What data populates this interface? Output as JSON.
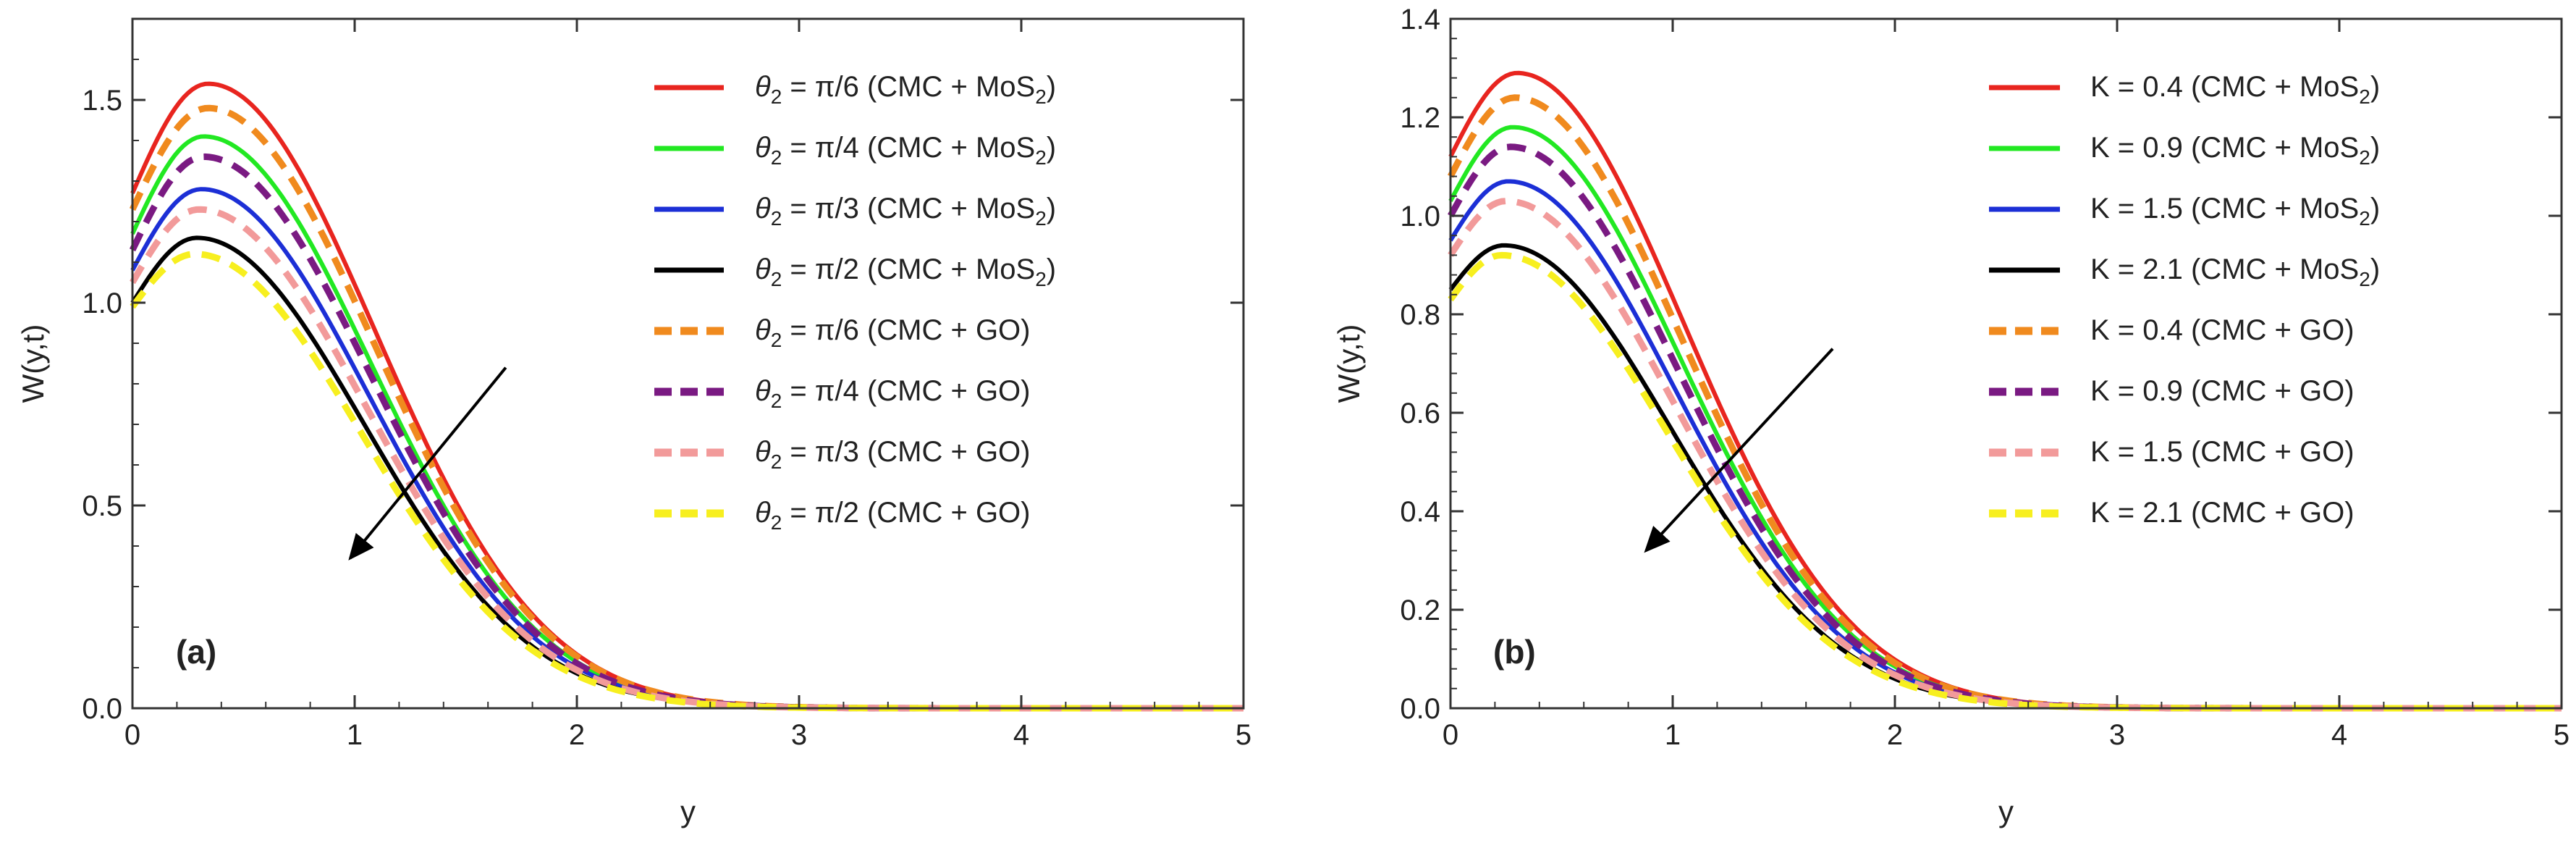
{
  "chart_data": [
    {
      "type": "line",
      "panel_label": "(a)",
      "xlabel": "y",
      "ylabel": "W(y,t)",
      "xlim": [
        0,
        5
      ],
      "ylim": [
        0,
        1.7
      ],
      "xticks": [
        "0",
        "1",
        "2",
        "3",
        "4",
        "5"
      ],
      "xtick_values": [
        0,
        1,
        2,
        3,
        4,
        5
      ],
      "yticks": [
        "0.0",
        "0.5",
        "1.0",
        "1.5"
      ],
      "ytick_values": [
        0,
        0.5,
        1.0,
        1.5
      ],
      "grid": false,
      "legend_position": "top-right",
      "arrow": {
        "from": [
          1.68,
          0.84
        ],
        "to": [
          0.98,
          0.37
        ]
      },
      "series": [
        {
          "label": {
            "sym": "θ",
            "sub": "2",
            "rest": " = π/6  (CMC + MoS",
            "sub2": "2",
            "tail": ")"
          },
          "color": "#e8251f",
          "dashed": false,
          "w0": 1.27,
          "peak_y": 0.34,
          "peak_w": 1.54
        },
        {
          "label": {
            "sym": "θ",
            "sub": "2",
            "rest": " = π/4  (CMC + MoS",
            "sub2": "2",
            "tail": ")"
          },
          "color": "#22e822",
          "dashed": false,
          "w0": 1.17,
          "peak_y": 0.32,
          "peak_w": 1.41
        },
        {
          "label": {
            "sym": "θ",
            "sub": "2",
            "rest": " = π/3  (CMC + MoS",
            "sub2": "2",
            "tail": ")"
          },
          "color": "#1c2fd6",
          "dashed": false,
          "w0": 1.08,
          "peak_y": 0.31,
          "peak_w": 1.28
        },
        {
          "label": {
            "sym": "θ",
            "sub": "2",
            "rest": " = π/2  (CMC + MoS",
            "sub2": "2",
            "tail": ")"
          },
          "color": "#000000",
          "dashed": false,
          "w0": 1.0,
          "peak_y": 0.29,
          "peak_w": 1.16
        },
        {
          "label": {
            "sym": "θ",
            "sub": "2",
            "rest": " = π/6  (CMC + GO)",
            "sub2": "",
            "tail": ""
          },
          "color": "#f08a1e",
          "dashed": true,
          "w0": 1.23,
          "peak_y": 0.34,
          "peak_w": 1.48
        },
        {
          "label": {
            "sym": "θ",
            "sub": "2",
            "rest": " = π/4  (CMC + GO)",
            "sub2": "",
            "tail": ""
          },
          "color": "#7a1a82",
          "dashed": true,
          "w0": 1.13,
          "peak_y": 0.32,
          "peak_w": 1.36
        },
        {
          "label": {
            "sym": "θ",
            "sub": "2",
            "rest": " = π/3  (CMC + GO)",
            "sub2": "",
            "tail": ""
          },
          "color": "#f29a9a",
          "dashed": true,
          "w0": 1.05,
          "peak_y": 0.3,
          "peak_w": 1.23
        },
        {
          "label": {
            "sym": "θ",
            "sub": "2",
            "rest": " = π/2  (CMC + GO)",
            "sub2": "",
            "tail": ""
          },
          "color": "#f7ef1f",
          "dashed": true,
          "w0": 0.99,
          "peak_y": 0.28,
          "peak_w": 1.12
        }
      ]
    },
    {
      "type": "line",
      "panel_label": "(b)",
      "xlabel": "y",
      "ylabel": "W(y,t)",
      "xlim": [
        0,
        5
      ],
      "ylim": [
        0,
        1.4
      ],
      "xticks": [
        "0",
        "1",
        "2",
        "3",
        "4",
        "5"
      ],
      "xtick_values": [
        0,
        1,
        2,
        3,
        4,
        5
      ],
      "yticks": [
        "0.0",
        "0.2",
        "0.4",
        "0.6",
        "0.8",
        "1.0",
        "1.2",
        "1.4"
      ],
      "ytick_values": [
        0,
        0.2,
        0.4,
        0.6,
        0.8,
        1.0,
        1.2,
        1.4
      ],
      "grid": false,
      "legend_position": "top-right",
      "arrow": {
        "from": [
          1.72,
          0.73
        ],
        "to": [
          0.88,
          0.32
        ]
      },
      "series": [
        {
          "label": {
            "sym": "",
            "sub": "",
            "rest": "K = 0.4  (CMC + MoS",
            "sub2": "2",
            "tail": ")"
          },
          "color": "#e8251f",
          "dashed": false,
          "w0": 1.12,
          "peak_y": 0.3,
          "peak_w": 1.29
        },
        {
          "label": {
            "sym": "",
            "sub": "",
            "rest": "K = 0.9  (CMC + MoS",
            "sub2": "2",
            "tail": ")"
          },
          "color": "#22e822",
          "dashed": false,
          "w0": 1.03,
          "peak_y": 0.28,
          "peak_w": 1.18
        },
        {
          "label": {
            "sym": "",
            "sub": "",
            "rest": "K = 1.5  (CMC + MoS",
            "sub2": "2",
            "tail": ")"
          },
          "color": "#1c2fd6",
          "dashed": false,
          "w0": 0.95,
          "peak_y": 0.26,
          "peak_w": 1.07
        },
        {
          "label": {
            "sym": "",
            "sub": "",
            "rest": "K = 2.1  (CMC + MoS",
            "sub2": "2",
            "tail": ")"
          },
          "color": "#000000",
          "dashed": false,
          "w0": 0.85,
          "peak_y": 0.24,
          "peak_w": 0.94
        },
        {
          "label": {
            "sym": "",
            "sub": "",
            "rest": "K = 0.4  (CMC + GO)",
            "sub2": "",
            "tail": ""
          },
          "color": "#f08a1e",
          "dashed": true,
          "w0": 1.08,
          "peak_y": 0.29,
          "peak_w": 1.24
        },
        {
          "label": {
            "sym": "",
            "sub": "",
            "rest": "K = 0.9  (CMC + GO)",
            "sub2": "",
            "tail": ""
          },
          "color": "#7a1a82",
          "dashed": true,
          "w0": 1.0,
          "peak_y": 0.27,
          "peak_w": 1.14
        },
        {
          "label": {
            "sym": "",
            "sub": "",
            "rest": "K = 1.5  (CMC + GO)",
            "sub2": "",
            "tail": ""
          },
          "color": "#f29a9a",
          "dashed": true,
          "w0": 0.92,
          "peak_y": 0.25,
          "peak_w": 1.03
        },
        {
          "label": {
            "sym": "",
            "sub": "",
            "rest": "K = 2.1  (CMC + GO)",
            "sub2": "",
            "tail": ""
          },
          "color": "#f7ef1f",
          "dashed": true,
          "w0": 0.83,
          "peak_y": 0.23,
          "peak_w": 0.92
        }
      ]
    }
  ]
}
